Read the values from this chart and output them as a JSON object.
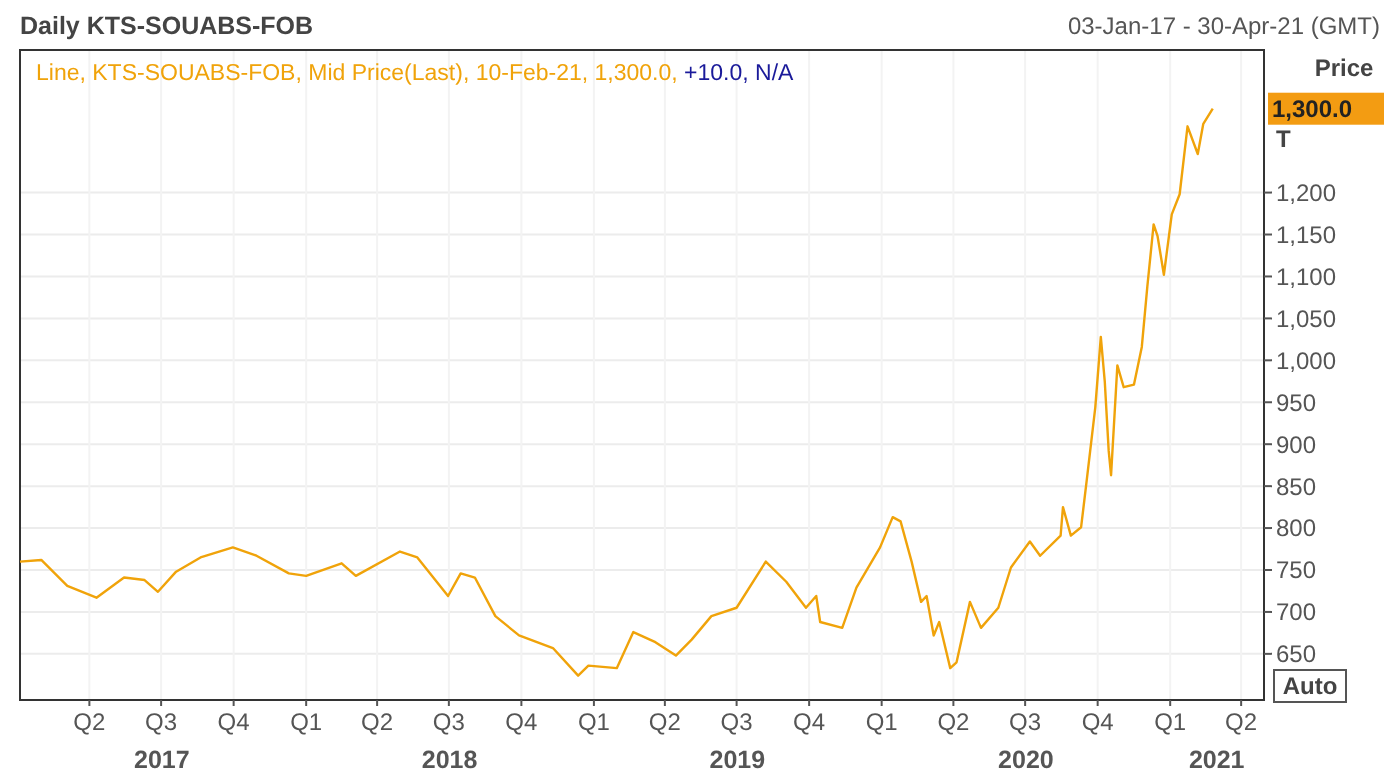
{
  "chart_data": {
    "type": "line",
    "title": "Daily KTS-SOUABS-FOB",
    "subtitle": "03-Jan-17 - 30-Apr-21 (GMT)",
    "ylabel": "Price",
    "x": [
      "2017-01-03",
      "2017-01-30",
      "2017-03-04",
      "2017-04-10",
      "2017-05-15",
      "2017-06-10",
      "2017-06-27",
      "2017-07-20",
      "2017-08-20",
      "2017-09-30",
      "2017-10-30",
      "2017-12-10",
      "2018-01-01",
      "2018-02-15",
      "2018-03-05",
      "2018-04-30",
      "2018-05-22",
      "2018-06-30",
      "2018-07-16",
      "2018-08-03",
      "2018-08-29",
      "2018-09-28",
      "2018-11-10",
      "2018-12-12",
      "2018-12-25",
      "2019-01-30",
      "2019-02-20",
      "2019-03-20",
      "2019-04-15",
      "2019-05-05",
      "2019-05-30",
      "2019-07-01",
      "2019-08-07",
      "2019-09-02",
      "2019-09-27",
      "2019-10-10",
      "2019-10-15",
      "2019-11-12",
      "2019-11-30",
      "2019-12-30",
      "2020-01-15",
      "2020-01-25",
      "2020-02-08",
      "2020-02-20",
      "2020-02-27",
      "2020-03-07",
      "2020-03-14",
      "2020-03-28",
      "2020-04-05",
      "2020-04-22",
      "2020-05-06",
      "2020-05-28",
      "2020-06-13",
      "2020-07-07",
      "2020-07-20",
      "2020-08-15",
      "2020-08-18",
      "2020-08-28",
      "2020-09-10",
      "2020-09-17",
      "2020-09-28",
      "2020-10-05",
      "2020-10-10",
      "2020-10-15",
      "2020-10-18",
      "2020-10-26",
      "2020-11-03",
      "2020-11-16",
      "2020-11-26",
      "2020-12-03",
      "2020-12-11",
      "2020-12-16",
      "2020-12-24",
      "2021-01-03",
      "2021-01-13",
      "2021-01-23",
      "2021-02-05",
      "2021-02-12",
      "2021-02-24"
    ],
    "series": [
      {
        "name": "Line, KTS-SOUABS-FOB, Mid Price(Last), 10-Feb-21, 1,300.0,",
        "color": "#f0a30a",
        "values": [
          760,
          762,
          731,
          717,
          741,
          738,
          724,
          748,
          765,
          777,
          767,
          746,
          743,
          758,
          743,
          772,
          765,
          719,
          746,
          741,
          695,
          672,
          657,
          624,
          636,
          633,
          676,
          664,
          648,
          667,
          695,
          705,
          760,
          736,
          705,
          719,
          688,
          681,
          729,
          777,
          813,
          808,
          760,
          712,
          719,
          672,
          688,
          633,
          640,
          712,
          681,
          705,
          753,
          784,
          767,
          791,
          825,
          791,
          801,
          856,
          944,
          1028,
          975,
          892,
          863,
          994,
          968,
          971,
          1016,
          1088,
          1162,
          1148,
          1102,
          1174,
          1198,
          1279,
          1246,
          1282,
          1300
        ]
      }
    ],
    "xlim": [
      "2017-01-03",
      "2021-04-30"
    ],
    "xticks": [
      {
        "value": "2017-04-01",
        "label": "Q2"
      },
      {
        "value": "2017-07-01",
        "label": "Q3"
      },
      {
        "value": "2017-10-01",
        "label": "Q4"
      },
      {
        "value": "2018-01-01",
        "label": "Q1"
      },
      {
        "value": "2018-04-01",
        "label": "Q2"
      },
      {
        "value": "2018-07-01",
        "label": "Q3"
      },
      {
        "value": "2018-10-01",
        "label": "Q4"
      },
      {
        "value": "2019-01-01",
        "label": "Q1"
      },
      {
        "value": "2019-04-01",
        "label": "Q2"
      },
      {
        "value": "2019-07-01",
        "label": "Q3"
      },
      {
        "value": "2019-10-01",
        "label": "Q4"
      },
      {
        "value": "2020-01-01",
        "label": "Q1"
      },
      {
        "value": "2020-04-01",
        "label": "Q2"
      },
      {
        "value": "2020-07-01",
        "label": "Q3"
      },
      {
        "value": "2020-10-01",
        "label": "Q4"
      },
      {
        "value": "2021-01-01",
        "label": "Q1"
      },
      {
        "value": "2021-04-01",
        "label": "Q2"
      }
    ],
    "x2ticks": [
      {
        "value": "2017-07-02",
        "label": "2017"
      },
      {
        "value": "2018-07-02",
        "label": "2018"
      },
      {
        "value": "2019-07-02",
        "label": "2019"
      },
      {
        "value": "2020-07-02",
        "label": "2020"
      },
      {
        "value": "2021-03-01",
        "label": "2021"
      }
    ],
    "ylim": [
      595,
      1370
    ],
    "yticks": [
      {
        "value": 650,
        "label": "650"
      },
      {
        "value": 700,
        "label": "700"
      },
      {
        "value": 750,
        "label": "750"
      },
      {
        "value": 800,
        "label": "800"
      },
      {
        "value": 850,
        "label": "850"
      },
      {
        "value": 900,
        "label": "900"
      },
      {
        "value": 950,
        "label": "950"
      },
      {
        "value": 1000,
        "label": "1,000"
      },
      {
        "value": 1050,
        "label": "1,050"
      },
      {
        "value": 1100,
        "label": "1,100"
      },
      {
        "value": 1150,
        "label": "1,150"
      },
      {
        "value": 1200,
        "label": "1,200"
      }
    ],
    "grid": true,
    "legend": "top left",
    "line_style": "solid",
    "x2lim": [
      "2017-01-03",
      "2021-04-30"
    ],
    "annotations": [
      "+10.0, N/A",
      "T",
      "Auto",
      "1,300.0"
    ]
  }
}
